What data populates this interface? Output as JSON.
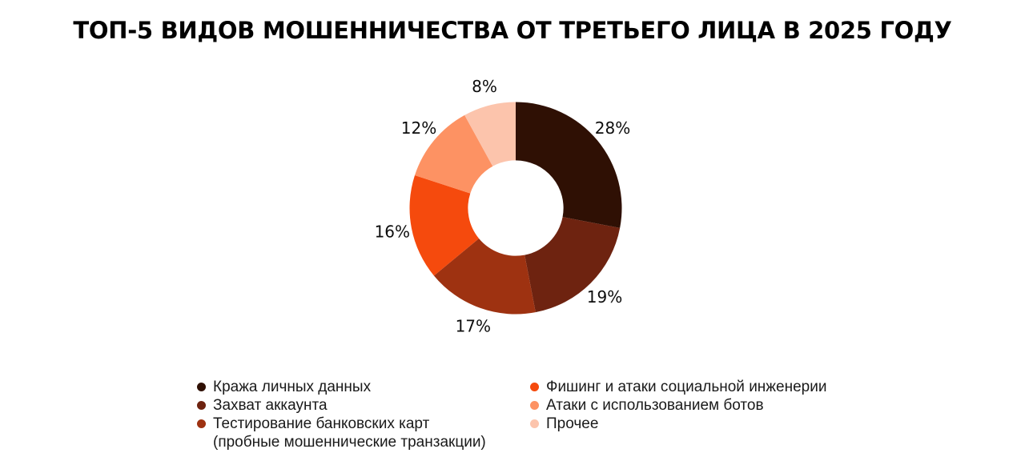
{
  "chart_data": {
    "type": "pie",
    "subtype": "donut",
    "title": "ТОП-5 ВИДОВ МОШЕННИЧЕСТВА ОТ ТРЕТЬЕГО ЛИЦА В 2025 ГОДУ",
    "unit": "%",
    "start_angle_deg": 0,
    "direction": "clockwise",
    "inner_radius_ratio": 0.45,
    "legend_position": "bottom",
    "legend_columns": [
      [
        0,
        1,
        2
      ],
      [
        3,
        4,
        5
      ]
    ],
    "slices": [
      {
        "label": "Кража личных данных",
        "value": 28,
        "color": "#2f1004"
      },
      {
        "label": "Захват аккаунта",
        "value": 19,
        "color": "#6e2310"
      },
      {
        "label": "Тестирование банковских карт (пробные мошеннические транзакции)",
        "label_lines": [
          "Тестирование банковских карт",
          "(пробные мошеннические транзакции)"
        ],
        "value": 17,
        "color": "#9e3211"
      },
      {
        "label": "Фишинг и атаки социальной инженерии",
        "value": 16,
        "color": "#f54a0d"
      },
      {
        "label": "Атаки с использованием ботов",
        "value": 12,
        "color": "#fd9263"
      },
      {
        "label": "Прочее",
        "value": 8,
        "color": "#fcc4ac"
      }
    ],
    "data_labels": [
      "28%",
      "19%",
      "17%",
      "16%",
      "12%",
      "8%"
    ],
    "colors": {
      "background": "#ffffff",
      "title_text": "#000000",
      "value_labels": "#0d0d0d",
      "legend_text": "#1a1a1a",
      "donut_hole": "#ffffff"
    }
  }
}
